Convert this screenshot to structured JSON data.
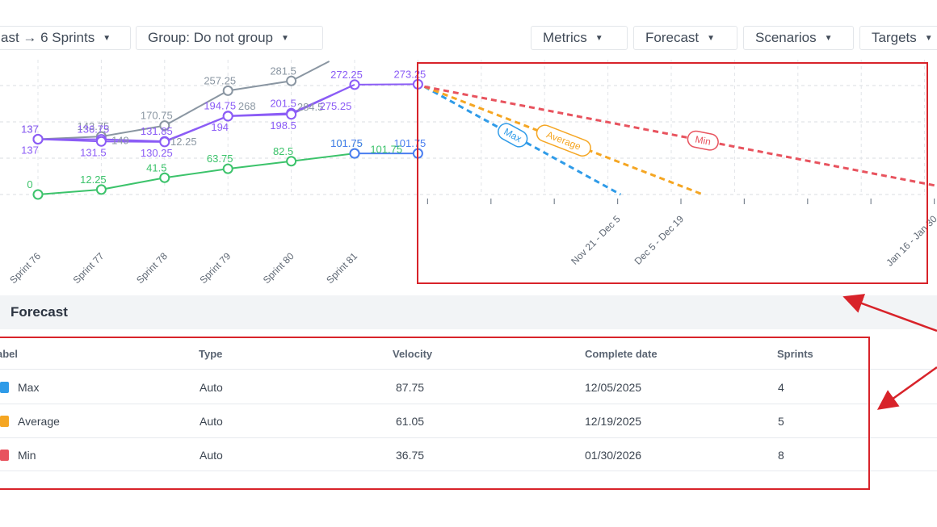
{
  "toolbar": {
    "left": [
      {
        "label": "ast → 6 Sprints"
      },
      {
        "label": "Group: Do not group"
      }
    ],
    "right": [
      {
        "label": "Metrics"
      },
      {
        "label": "Forecast"
      },
      {
        "label": "Scenarios"
      },
      {
        "label": "Targets"
      }
    ]
  },
  "colors": {
    "gray": "#8a96a2",
    "purple": "#8b5cf6",
    "green": "#3cc36b",
    "blue": "#4a7ef0",
    "max": "#2f9be8",
    "average": "#f5a623",
    "min": "#e8535e",
    "annotation": "#d8232a"
  },
  "chart_data": {
    "type": "line",
    "categories": [
      "Sprint 76",
      "Sprint 77",
      "Sprint 78",
      "Sprint 79",
      "Sprint 80",
      "Sprint 81"
    ],
    "series": [
      {
        "color_key": "gray",
        "points": [
          {
            "x": 0,
            "y": 137,
            "label": "137"
          },
          {
            "x": 1,
            "y": 143.75,
            "label": "143.75"
          },
          {
            "x": 2,
            "y": 170.75,
            "label": "170.75"
          },
          {
            "x": 3,
            "y": 257.25,
            "label": "257.25"
          },
          {
            "x": 4,
            "y": 281.5,
            "label": "281.5"
          },
          {
            "x": 4.6,
            "y": 330,
            "label": ""
          }
        ]
      },
      {
        "color_key": "purple",
        "points": [
          {
            "x": 0,
            "y": 137,
            "label": "137"
          },
          {
            "x": 1,
            "y": 136.75,
            "label": "136.75"
          },
          {
            "x": 2,
            "y": 131.85,
            "label": "131.85"
          },
          {
            "x": 3,
            "y": 194.75,
            "label": "194.75"
          },
          {
            "x": 4,
            "y": 201.5,
            "label": "201.5"
          },
          {
            "x": 5,
            "y": 272.25,
            "label": "272.25"
          },
          {
            "x": 6,
            "y": 273.25,
            "label": "273.25"
          }
        ]
      },
      {
        "color_key": "purple",
        "point_labels_below": true,
        "points": [
          {
            "x": 0,
            "y": 137,
            "label": "137"
          },
          {
            "x": 1,
            "y": 131.5,
            "label": "131.5"
          },
          {
            "x": 2,
            "y": 130.25,
            "label": "130.25"
          },
          {
            "x": 3,
            "y": 194,
            "label": "194"
          },
          {
            "x": 4,
            "y": 198.5,
            "label": "198.5"
          },
          {
            "x": 5,
            "y": 272.25,
            "label": ""
          }
        ]
      },
      {
        "color_key": "green",
        "points": [
          {
            "x": 0,
            "y": 0,
            "label": "0"
          },
          {
            "x": 1,
            "y": 12.25,
            "label": "12.25"
          },
          {
            "x": 2,
            "y": 41.5,
            "label": "41.5"
          },
          {
            "x": 3,
            "y": 63.75,
            "label": "63.75"
          },
          {
            "x": 4,
            "y": 82.5,
            "label": "82.5"
          },
          {
            "x": 5,
            "y": 101.75,
            "label": "101.75"
          }
        ]
      },
      {
        "color_key": "blue",
        "points": [
          {
            "x": 5,
            "y": 101.75,
            "label": "101.75"
          },
          {
            "x": 6,
            "y": 101.75,
            "label": "101.75"
          }
        ]
      }
    ],
    "extra_labels": [
      {
        "x": 1.3,
        "y": 125,
        "text": "149",
        "color_key": "gray"
      },
      {
        "x": 2.3,
        "y": 122,
        "text": "12.25",
        "color_key": "gray"
      },
      {
        "x": 3.3,
        "y": 210,
        "text": "268",
        "color_key": "gray"
      },
      {
        "x": 4.3,
        "y": 208,
        "text": "284.5",
        "color_key": "gray"
      },
      {
        "x": 4.7,
        "y": 210,
        "text": "275.25",
        "color_key": "purple"
      },
      {
        "x": 5.5,
        "y": 103,
        "text": "101.75",
        "color_key": "green"
      }
    ],
    "forecast": {
      "x_start": 6,
      "y_start": 273.25,
      "ticks": [
        "Nov 21 - Dec 5",
        "Dec 5 - Dec 19",
        "Jan 16 - Jan 30"
      ],
      "lines": [
        {
          "name": "Max",
          "color_key": "max",
          "x_end": 9.2
        },
        {
          "name": "Average",
          "color_key": "average",
          "x_end": 10.5
        },
        {
          "name": "Min",
          "color_key": "min",
          "x_end": 14.9
        }
      ]
    },
    "ylim": [
      0,
      330
    ]
  },
  "forecast_section": {
    "title": "Forecast",
    "headers": {
      "label": "abel",
      "type": "Type",
      "velocity": "Velocity",
      "complete_date": "Complete date",
      "sprints": "Sprints"
    },
    "rows": [
      {
        "label": "Max",
        "type": "Auto",
        "velocity": "87.75",
        "complete_date": "12/05/2025",
        "sprints": "4",
        "color_key": "max"
      },
      {
        "label": "Average",
        "type": "Auto",
        "velocity": "61.05",
        "complete_date": "12/19/2025",
        "sprints": "5",
        "color_key": "average"
      },
      {
        "label": "Min",
        "type": "Auto",
        "velocity": "36.75",
        "complete_date": "01/30/2026",
        "sprints": "8",
        "color_key": "min"
      }
    ]
  }
}
